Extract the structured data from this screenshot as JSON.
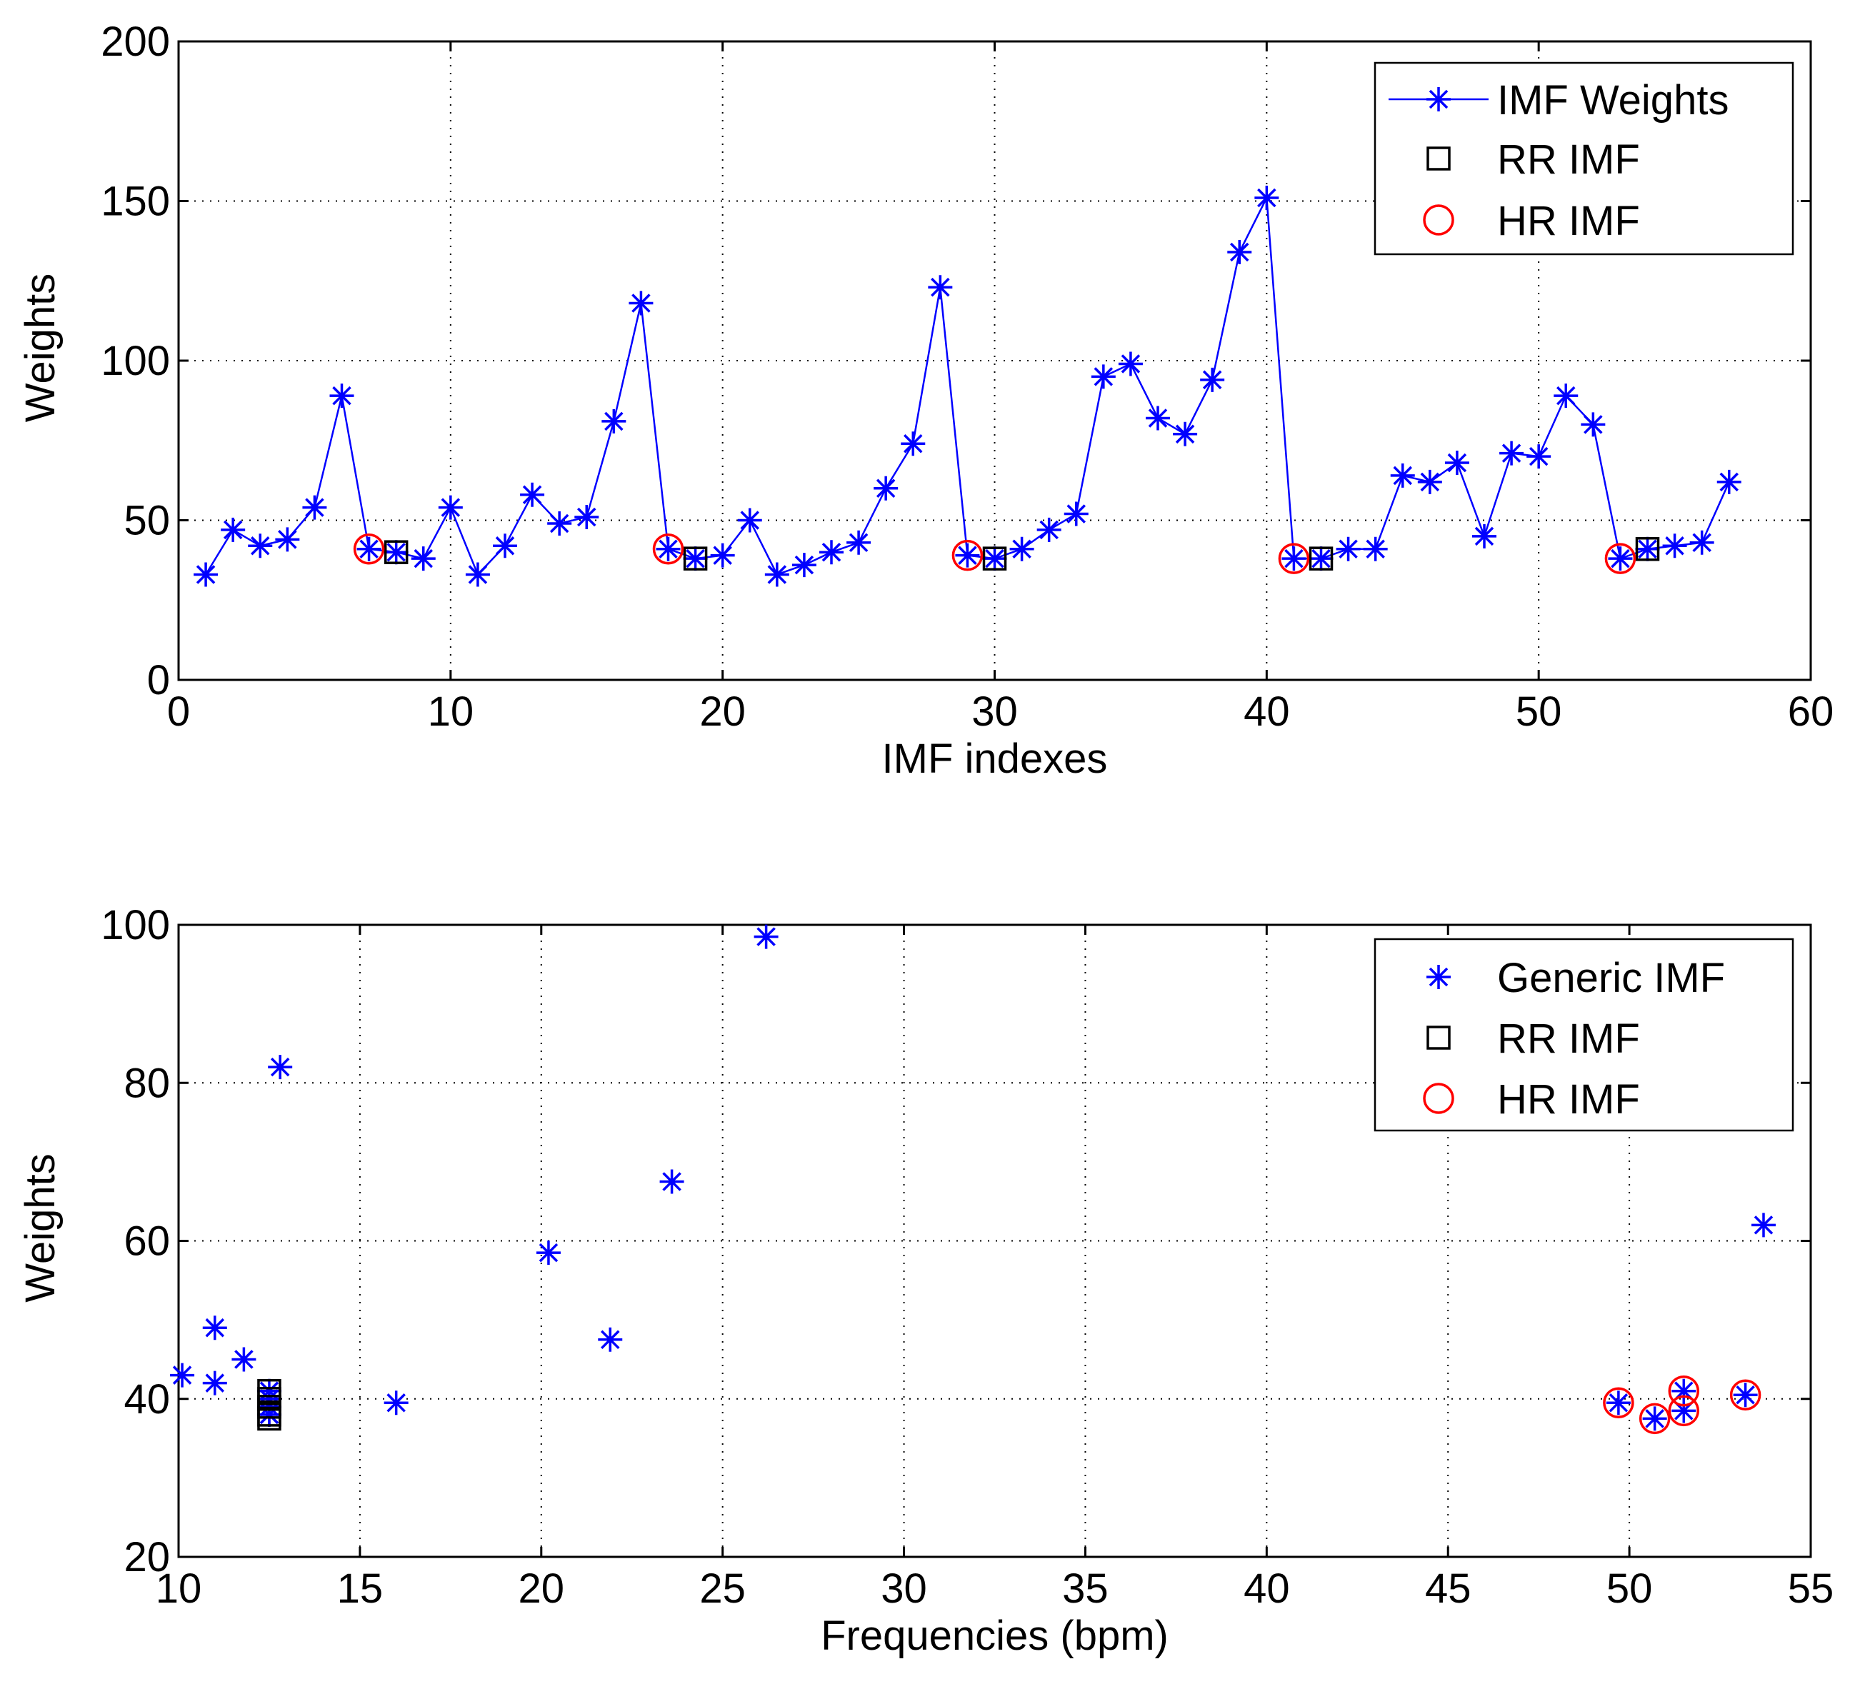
{
  "colors": {
    "series": "#0000ff",
    "rr": "#000000",
    "hr": "#ff0000"
  },
  "chart_data": [
    {
      "type": "line",
      "xlabel": "IMF indexes",
      "ylabel": "Weights",
      "xlim": [
        0,
        60
      ],
      "ylim": [
        0,
        200
      ],
      "xticks": [
        0,
        10,
        20,
        30,
        40,
        50,
        60
      ],
      "yticks": [
        0,
        50,
        100,
        150,
        200
      ],
      "grid": true,
      "legend_position": "top-right",
      "legend": [
        "IMF Weights",
        "RR IMF",
        "HR IMF"
      ],
      "series": [
        {
          "name": "IMF Weights",
          "x": [
            1,
            2,
            3,
            4,
            5,
            6,
            7,
            8,
            9,
            10,
            11,
            12,
            13,
            14,
            15,
            16,
            17,
            18,
            19,
            20,
            21,
            22,
            23,
            24,
            25,
            26,
            27,
            28,
            29,
            30,
            31,
            32,
            33,
            34,
            35,
            36,
            37,
            38,
            39,
            40,
            41,
            42,
            43,
            44,
            45,
            46,
            47,
            48,
            49,
            50,
            51,
            52,
            53,
            54,
            55,
            56,
            57
          ],
          "y": [
            33,
            47,
            42,
            44,
            54,
            89,
            41,
            40,
            38,
            54,
            33,
            42,
            58,
            49,
            51,
            81,
            118,
            41,
            38,
            39,
            50,
            33,
            36,
            40,
            43,
            60,
            74,
            123,
            39,
            38,
            41,
            47,
            52,
            95,
            99,
            82,
            77,
            94,
            134,
            151,
            38,
            38,
            41,
            41,
            64,
            62,
            68,
            45,
            71,
            70,
            89,
            80,
            38,
            41,
            42,
            43,
            62
          ]
        },
        {
          "name": "RR IMF",
          "x": [
            8,
            19,
            30,
            42,
            54
          ],
          "y": [
            40,
            38,
            38,
            38,
            41
          ]
        },
        {
          "name": "HR IMF",
          "x": [
            7,
            18,
            29,
            41,
            53
          ],
          "y": [
            41,
            41,
            39,
            38,
            38
          ]
        }
      ]
    },
    {
      "type": "scatter",
      "xlabel": "Frequencies (bpm)",
      "ylabel": "Weights",
      "xlim": [
        10,
        55
      ],
      "ylim": [
        20,
        100
      ],
      "xticks": [
        10,
        15,
        20,
        25,
        30,
        35,
        40,
        45,
        50,
        55
      ],
      "yticks": [
        20,
        40,
        60,
        80,
        100
      ],
      "grid": true,
      "legend_position": "top-right",
      "legend": [
        "Generic IMF",
        "RR IMF",
        "HR IMF"
      ],
      "series": [
        {
          "name": "Generic IMF",
          "x": [
            10.1,
            11.0,
            11.0,
            11.8,
            12.5,
            12.5,
            12.5,
            12.5,
            12.5,
            12.8,
            16.0,
            20.2,
            21.9,
            23.6,
            26.2,
            49.7,
            50.7,
            51.5,
            51.5,
            53.2,
            53.7
          ],
          "y": [
            43,
            42,
            49,
            45,
            41,
            40,
            39,
            38,
            38,
            82,
            39.5,
            58.5,
            47.5,
            67.5,
            98.5,
            39.5,
            37.5,
            41,
            38.5,
            40.5,
            62
          ]
        },
        {
          "name": "RR IMF",
          "x": [
            12.5,
            12.5,
            12.5,
            12.5,
            12.5
          ],
          "y": [
            41,
            40,
            39,
            38,
            37.5
          ]
        },
        {
          "name": "HR IMF",
          "x": [
            49.7,
            50.7,
            51.5,
            51.5,
            53.2
          ],
          "y": [
            39.5,
            37.5,
            41,
            38.5,
            40.5
          ]
        }
      ]
    }
  ]
}
